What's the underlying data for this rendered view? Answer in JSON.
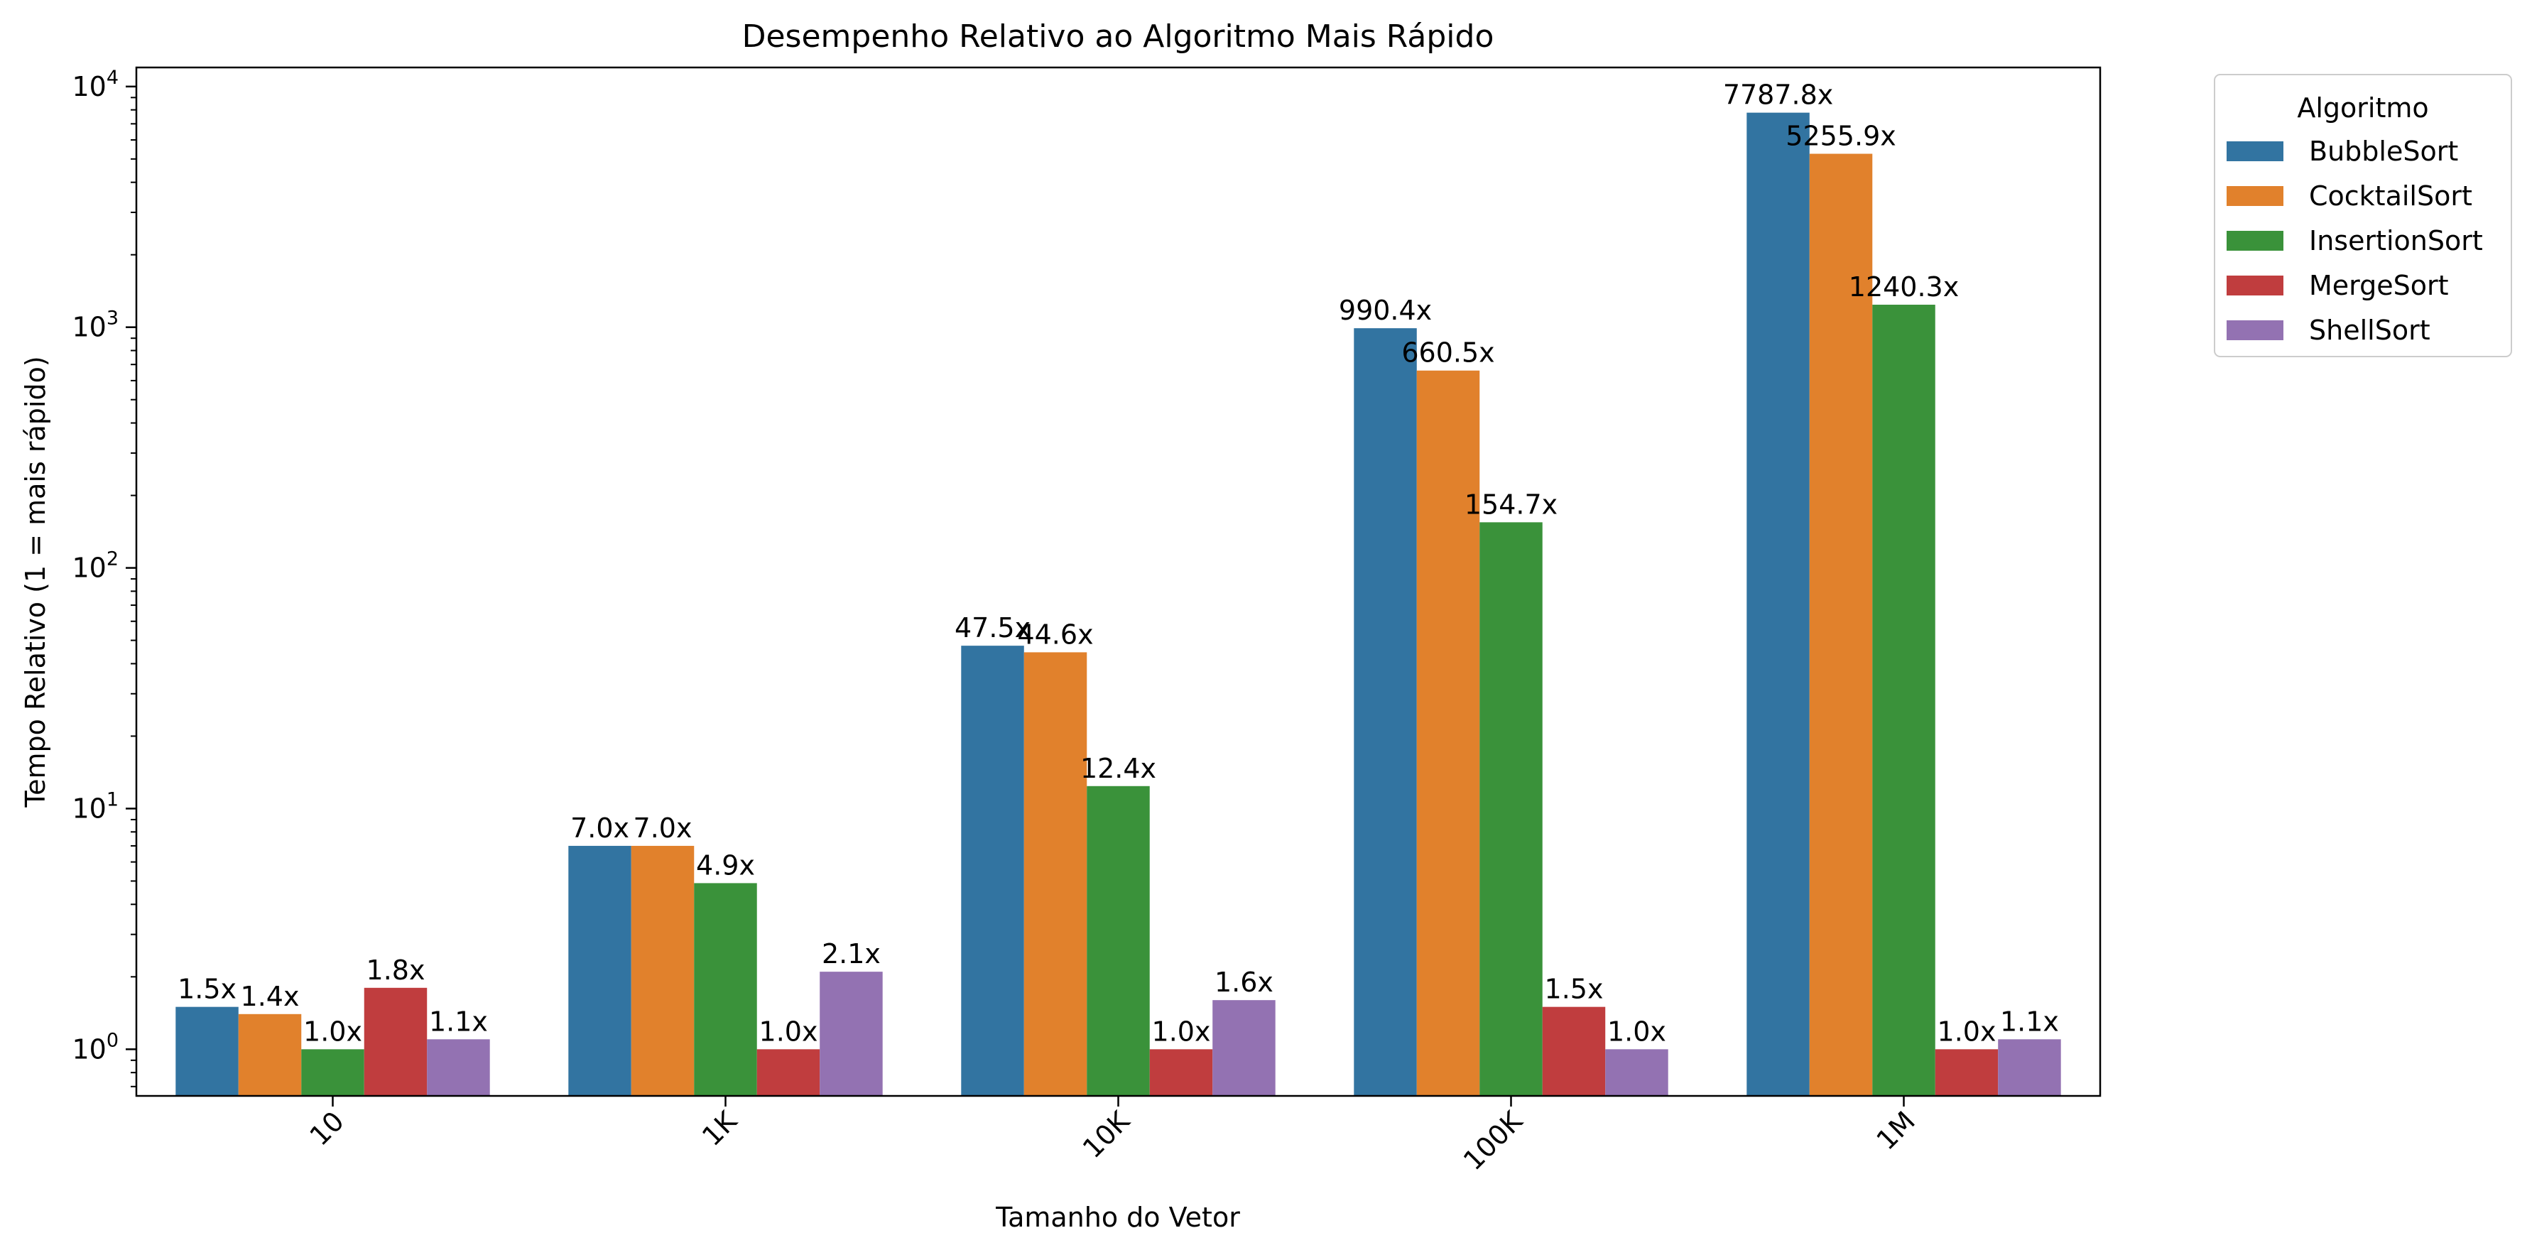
{
  "colors": {
    "BubbleSort": "#3274a1",
    "CocktailSort": "#e1812c",
    "InsertionSort": "#3a923a",
    "MergeSort": "#c03d3e",
    "ShellSort": "#9372b2"
  },
  "chart_data": {
    "type": "bar",
    "title": "Desempenho Relativo ao Algoritmo Mais Rápido",
    "xlabel": "Tamanho do Vetor",
    "ylabel": "Tempo Relativo (1 = mais rápido)",
    "yscale": "log",
    "ylim": [
      0.64,
      12000
    ],
    "yticks": [
      {
        "value": 1,
        "base": "10",
        "exp": "0"
      },
      {
        "value": 10,
        "base": "10",
        "exp": "1"
      },
      {
        "value": 100,
        "base": "10",
        "exp": "2"
      },
      {
        "value": 1000,
        "base": "10",
        "exp": "3"
      },
      {
        "value": 10000,
        "base": "10",
        "exp": "4"
      }
    ],
    "categories": [
      "10",
      "1K",
      "10K",
      "100K",
      "1M"
    ],
    "legend_title": "Algoritmo",
    "legend_placement": "outside-top-right",
    "grid": false,
    "series": [
      {
        "name": "BubbleSort",
        "values": [
          1.5,
          7.0,
          47.5,
          990.4,
          7787.8
        ],
        "labels": [
          "1.5x",
          "7.0x",
          "47.5x",
          "990.4x",
          "7787.8x"
        ]
      },
      {
        "name": "CocktailSort",
        "values": [
          1.4,
          7.0,
          44.6,
          660.5,
          5255.9
        ],
        "labels": [
          "1.4x",
          "7.0x",
          "44.6x",
          "660.5x",
          "5255.9x"
        ]
      },
      {
        "name": "InsertionSort",
        "values": [
          1.0,
          4.9,
          12.4,
          154.7,
          1240.3
        ],
        "labels": [
          "1.0x",
          "4.9x",
          "12.4x",
          "154.7x",
          "1240.3x"
        ]
      },
      {
        "name": "MergeSort",
        "values": [
          1.8,
          1.0,
          1.0,
          1.5,
          1.0
        ],
        "labels": [
          "1.8x",
          "1.0x",
          "1.0x",
          "1.5x",
          "1.0x"
        ]
      },
      {
        "name": "ShellSort",
        "values": [
          1.1,
          2.1,
          1.6,
          1.0,
          1.1
        ],
        "labels": [
          "1.1x",
          "2.1x",
          "1.6x",
          "1.0x",
          "1.1x"
        ]
      }
    ]
  }
}
